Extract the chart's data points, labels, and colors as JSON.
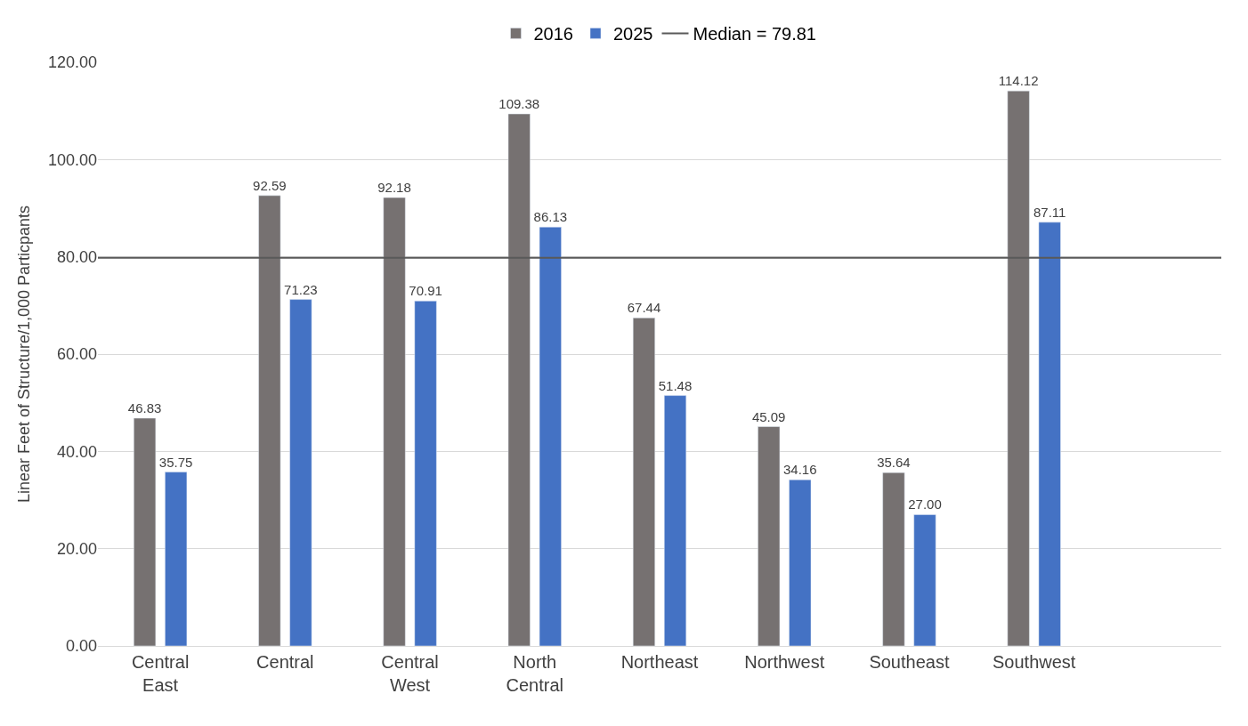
{
  "chart_data": {
    "type": "bar",
    "ylabel": "Linear Feet of Structure/1,000 Particpants",
    "categories": [
      "Central East",
      "Central",
      "Central West",
      "North Central",
      "Northeast",
      "Northwest",
      "Southeast",
      "Southwest",
      null
    ],
    "series": [
      {
        "name": "2016",
        "color": "#767171",
        "values": [
          46.83,
          92.59,
          92.18,
          109.38,
          67.44,
          45.09,
          35.64,
          114.12,
          null
        ],
        "value_labels": [
          "46.83",
          "92.59",
          "92.18",
          "109.38",
          "67.44",
          "45.09",
          "35.64",
          "114.12",
          null
        ]
      },
      {
        "name": "2025",
        "color": "#4472c4",
        "values": [
          35.75,
          71.23,
          70.91,
          86.13,
          51.48,
          34.16,
          27.0,
          87.11,
          null
        ],
        "value_labels": [
          "35.75",
          "71.23",
          "70.91",
          "86.13",
          "51.48",
          "34.16",
          "27.00",
          "87.11",
          null
        ]
      }
    ],
    "ref_lines": [
      {
        "axis": "y",
        "value": 79.81,
        "label": "Median = 79.81",
        "color": "#595959",
        "line_style": "solid"
      }
    ],
    "ylim": [
      0,
      120
    ],
    "yticks": [
      {
        "value": 0,
        "label": "0.00"
      },
      {
        "value": 20,
        "label": "20.00"
      },
      {
        "value": 40,
        "label": "40.00"
      },
      {
        "value": 60,
        "label": "60.00"
      },
      {
        "value": 80,
        "label": "80.00"
      },
      {
        "value": 100,
        "label": "100.00"
      },
      {
        "value": 120,
        "label": "120.00"
      }
    ],
    "grid": "y",
    "legend": "top"
  }
}
